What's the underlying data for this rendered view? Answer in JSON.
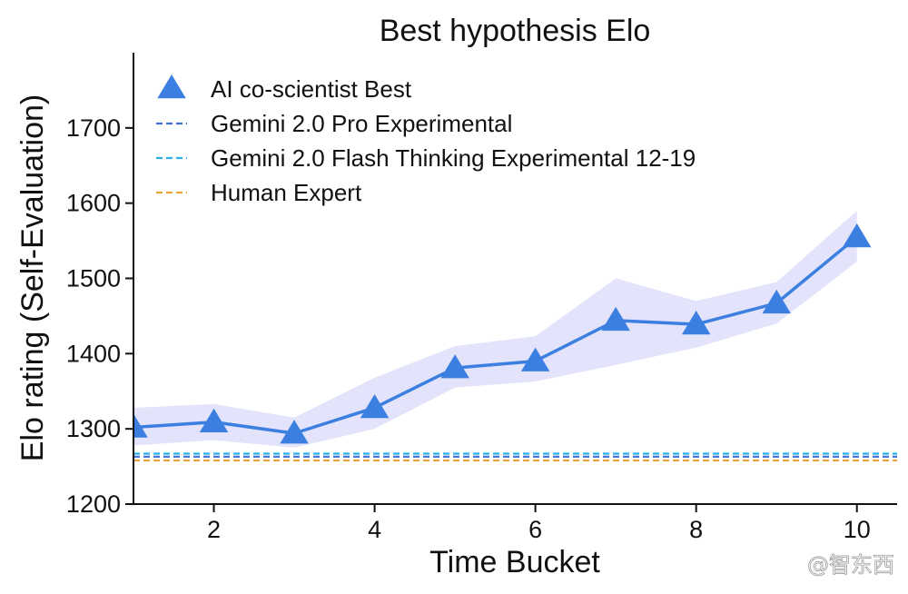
{
  "chart_data": {
    "type": "line",
    "title": "Best hypothesis Elo",
    "xlabel": "Time Bucket",
    "ylabel": "Elo rating (Self-Evaluation)",
    "xlim": [
      1,
      10.5
    ],
    "ylim": [
      1200,
      1800
    ],
    "xticks": [
      2,
      4,
      6,
      8,
      10
    ],
    "yticks": [
      1200,
      1300,
      1400,
      1500,
      1600,
      1700
    ],
    "grid": false,
    "legend_position": "top-left",
    "series": [
      {
        "name": "AI co-scientist Best",
        "style": "line-triangle-markers",
        "color": "#3b7fe0",
        "x": [
          1,
          2,
          3,
          4,
          5,
          6,
          7,
          8,
          9,
          10
        ],
        "y": [
          1302,
          1309,
          1294,
          1328,
          1381,
          1390,
          1444,
          1439,
          1467,
          1555
        ],
        "band_lower": [
          1278,
          1285,
          1275,
          1300,
          1355,
          1363,
          1385,
          1408,
          1440,
          1522
        ],
        "band_upper": [
          1328,
          1333,
          1315,
          1368,
          1410,
          1423,
          1500,
          1470,
          1495,
          1590
        ],
        "band_color": "#e3e3fb"
      },
      {
        "name": "Gemini 2.0 Pro Experimental",
        "style": "dashed-hline",
        "color": "#3f6fd8",
        "y": 1263
      },
      {
        "name": "Gemini 2.0 Flash Thinking Experimental 12-19",
        "style": "dashed-hline",
        "color": "#29aee6",
        "y": 1267
      },
      {
        "name": "Human Expert",
        "style": "dashed-hline",
        "color": "#e8a33a",
        "y": 1258
      }
    ]
  },
  "watermark": {
    "text": "@智东西"
  }
}
